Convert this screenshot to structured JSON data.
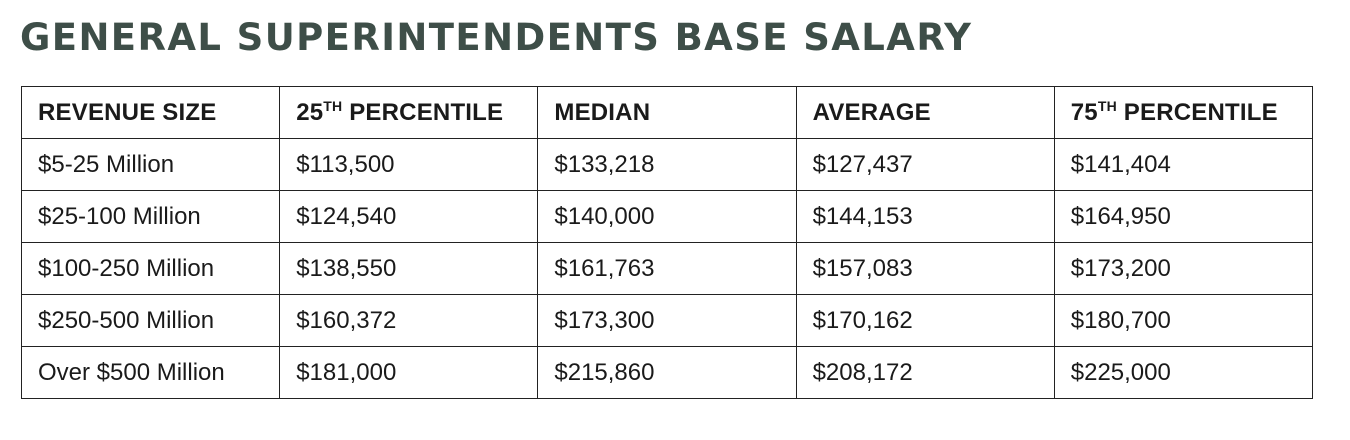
{
  "title": "GENERAL SUPERINTENDENTS BASE SALARY",
  "table": {
    "headers": [
      {
        "prefix": "REVENUE SIZE",
        "sup": "",
        "suffix": ""
      },
      {
        "prefix": "25",
        "sup": "TH",
        "suffix": " PERCENTILE"
      },
      {
        "prefix": "MEDIAN",
        "sup": "",
        "suffix": ""
      },
      {
        "prefix": "AVERAGE",
        "sup": "",
        "suffix": ""
      },
      {
        "prefix": "75",
        "sup": "TH",
        "suffix": " PERCENTILE"
      }
    ],
    "rows": [
      [
        "$5-25 Million",
        "$113,500",
        "$133,218",
        "$127,437",
        "$141,404"
      ],
      [
        "$25-100 Million",
        "$124,540",
        "$140,000",
        "$144,153",
        "$164,950"
      ],
      [
        "$100-250 Million",
        "$138,550",
        "$161,763",
        "$157,083",
        "$173,200"
      ],
      [
        "$250-500 Million",
        "$160,372",
        "$173,300",
        "$170,162",
        "$180,700"
      ],
      [
        "Over $500 Million",
        "$181,000",
        "$215,860",
        "$208,172",
        "$225,000"
      ]
    ]
  }
}
